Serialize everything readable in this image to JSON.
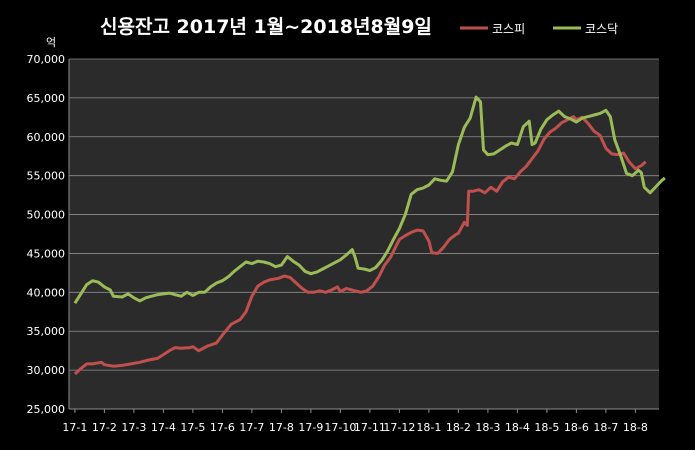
{
  "chart_data": {
    "type": "line",
    "title": "신용잔고 2017년 1월~2018년8월9일",
    "ylabel": "억",
    "xlabel": "",
    "ylim": [
      25000,
      70000
    ],
    "yticks": [
      "25,000",
      "30,000",
      "35,000",
      "40,000",
      "45,000",
      "50,000",
      "55,000",
      "60,000",
      "65,000",
      "70,000"
    ],
    "categories": [
      "17-1",
      "17-2",
      "17-3",
      "17-4",
      "17-5",
      "17-6",
      "17-7",
      "17-8",
      "17-9",
      "17-10",
      "17-11",
      "17-12",
      "18-1",
      "18-2",
      "18-3",
      "18-4",
      "18-5",
      "18-6",
      "18-7",
      "18-8"
    ],
    "grid": true,
    "legend_position": "top-right",
    "series": [
      {
        "name": "코스피",
        "color": "#c0504d",
        "points": [
          [
            0,
            29500
          ],
          [
            0.2,
            30200
          ],
          [
            0.4,
            30800
          ],
          [
            0.6,
            30800
          ],
          [
            0.9,
            31000
          ],
          [
            1.0,
            30700
          ],
          [
            1.3,
            30500
          ],
          [
            1.6,
            30600
          ],
          [
            1.9,
            30800
          ],
          [
            2.2,
            31000
          ],
          [
            2.5,
            31300
          ],
          [
            2.8,
            31500
          ],
          [
            3.0,
            32000
          ],
          [
            3.2,
            32500
          ],
          [
            3.4,
            32900
          ],
          [
            3.6,
            32800
          ],
          [
            3.9,
            32900
          ],
          [
            4.0,
            33000
          ],
          [
            4.2,
            32500
          ],
          [
            4.5,
            33100
          ],
          [
            4.8,
            33500
          ],
          [
            5.0,
            34500
          ],
          [
            5.3,
            35900
          ],
          [
            5.6,
            36500
          ],
          [
            5.8,
            37500
          ],
          [
            6.0,
            39500
          ],
          [
            6.2,
            40800
          ],
          [
            6.4,
            41300
          ],
          [
            6.6,
            41600
          ],
          [
            6.9,
            41800
          ],
          [
            7.1,
            42100
          ],
          [
            7.3,
            41900
          ],
          [
            7.5,
            41200
          ],
          [
            7.7,
            40500
          ],
          [
            7.9,
            40000
          ],
          [
            8.1,
            40000
          ],
          [
            8.3,
            40200
          ],
          [
            8.5,
            40000
          ],
          [
            8.7,
            40300
          ],
          [
            8.9,
            40700
          ],
          [
            9.0,
            40100
          ],
          [
            9.2,
            40500
          ],
          [
            9.5,
            40200
          ],
          [
            9.7,
            40000
          ],
          [
            9.9,
            40200
          ],
          [
            10.1,
            40800
          ],
          [
            10.3,
            42000
          ],
          [
            10.5,
            43500
          ],
          [
            10.7,
            44500
          ],
          [
            11.0,
            46800
          ],
          [
            11.2,
            47300
          ],
          [
            11.4,
            47700
          ],
          [
            11.6,
            48000
          ],
          [
            11.8,
            47900
          ],
          [
            12.0,
            46600
          ],
          [
            12.1,
            45100
          ],
          [
            12.3,
            45000
          ],
          [
            12.5,
            45800
          ],
          [
            12.7,
            46800
          ],
          [
            12.9,
            47400
          ],
          [
            13.0,
            47600
          ],
          [
            13.2,
            49000
          ],
          [
            13.3,
            48600
          ],
          [
            13.35,
            53000
          ],
          [
            13.5,
            53000
          ],
          [
            13.7,
            53200
          ],
          [
            13.9,
            52800
          ],
          [
            14.1,
            53500
          ],
          [
            14.3,
            53000
          ],
          [
            14.5,
            54200
          ],
          [
            14.7,
            54800
          ],
          [
            14.9,
            54600
          ],
          [
            15.1,
            55500
          ],
          [
            15.3,
            56200
          ],
          [
            15.5,
            57200
          ],
          [
            15.7,
            58200
          ],
          [
            15.9,
            59700
          ],
          [
            16.1,
            60600
          ],
          [
            16.3,
            61100
          ],
          [
            16.5,
            61800
          ],
          [
            16.7,
            62200
          ],
          [
            16.9,
            62600
          ],
          [
            17.0,
            62200
          ],
          [
            17.2,
            62500
          ],
          [
            17.4,
            61700
          ],
          [
            17.6,
            60700
          ],
          [
            17.8,
            60200
          ],
          [
            18.0,
            58500
          ],
          [
            18.2,
            57800
          ],
          [
            18.4,
            57700
          ],
          [
            18.6,
            57900
          ],
          [
            18.8,
            56700
          ],
          [
            19.0,
            55900
          ],
          [
            19.2,
            56300
          ],
          [
            19.35,
            56800
          ]
        ]
      },
      {
        "name": "코스닥",
        "color": "#9bbb59",
        "points": [
          [
            0,
            38600
          ],
          [
            0.2,
            39800
          ],
          [
            0.4,
            41000
          ],
          [
            0.6,
            41500
          ],
          [
            0.8,
            41300
          ],
          [
            1.0,
            40700
          ],
          [
            1.2,
            40300
          ],
          [
            1.3,
            39500
          ],
          [
            1.6,
            39400
          ],
          [
            1.8,
            39800
          ],
          [
            2.0,
            39300
          ],
          [
            2.2,
            38900
          ],
          [
            2.4,
            39300
          ],
          [
            2.6,
            39500
          ],
          [
            2.8,
            39700
          ],
          [
            3.0,
            39800
          ],
          [
            3.2,
            39900
          ],
          [
            3.4,
            39700
          ],
          [
            3.6,
            39500
          ],
          [
            3.8,
            40000
          ],
          [
            4.0,
            39600
          ],
          [
            4.2,
            40000
          ],
          [
            4.4,
            40000
          ],
          [
            4.6,
            40700
          ],
          [
            4.8,
            41200
          ],
          [
            5.0,
            41500
          ],
          [
            5.2,
            42000
          ],
          [
            5.4,
            42700
          ],
          [
            5.6,
            43300
          ],
          [
            5.8,
            43900
          ],
          [
            6.0,
            43700
          ],
          [
            6.2,
            44000
          ],
          [
            6.4,
            43900
          ],
          [
            6.6,
            43700
          ],
          [
            6.8,
            43300
          ],
          [
            7.0,
            43500
          ],
          [
            7.2,
            44600
          ],
          [
            7.4,
            44000
          ],
          [
            7.6,
            43500
          ],
          [
            7.8,
            42700
          ],
          [
            8.0,
            42400
          ],
          [
            8.2,
            42600
          ],
          [
            8.4,
            43000
          ],
          [
            8.6,
            43400
          ],
          [
            8.8,
            43800
          ],
          [
            9.0,
            44200
          ],
          [
            9.2,
            44800
          ],
          [
            9.4,
            45500
          ],
          [
            9.5,
            44500
          ],
          [
            9.6,
            43100
          ],
          [
            9.8,
            43000
          ],
          [
            10.0,
            42800
          ],
          [
            10.2,
            43200
          ],
          [
            10.4,
            44100
          ],
          [
            10.6,
            45300
          ],
          [
            10.8,
            46800
          ],
          [
            11.0,
            48200
          ],
          [
            11.2,
            50000
          ],
          [
            11.4,
            52600
          ],
          [
            11.6,
            53200
          ],
          [
            11.8,
            53400
          ],
          [
            12.0,
            53800
          ],
          [
            12.2,
            54600
          ],
          [
            12.4,
            54400
          ],
          [
            12.6,
            54300
          ],
          [
            12.8,
            55500
          ],
          [
            13.0,
            59000
          ],
          [
            13.2,
            61200
          ],
          [
            13.4,
            62400
          ],
          [
            13.6,
            65100
          ],
          [
            13.75,
            64500
          ],
          [
            13.85,
            58300
          ],
          [
            14.0,
            57700
          ],
          [
            14.2,
            57800
          ],
          [
            14.4,
            58300
          ],
          [
            14.6,
            58800
          ],
          [
            14.8,
            59200
          ],
          [
            15.0,
            59000
          ],
          [
            15.2,
            61300
          ],
          [
            15.4,
            62000
          ],
          [
            15.5,
            59000
          ],
          [
            15.6,
            59200
          ],
          [
            15.8,
            61000
          ],
          [
            16.0,
            62200
          ],
          [
            16.2,
            62800
          ],
          [
            16.4,
            63300
          ],
          [
            16.6,
            62600
          ],
          [
            16.8,
            62300
          ],
          [
            17.0,
            61900
          ],
          [
            17.2,
            62400
          ],
          [
            17.4,
            62600
          ],
          [
            17.6,
            62800
          ],
          [
            17.8,
            63000
          ],
          [
            18.0,
            63400
          ],
          [
            18.15,
            62600
          ],
          [
            18.3,
            59600
          ],
          [
            18.5,
            57600
          ],
          [
            18.7,
            55300
          ],
          [
            18.9,
            55000
          ],
          [
            19.1,
            55700
          ],
          [
            19.2,
            55400
          ],
          [
            19.3,
            53500
          ],
          [
            19.5,
            52800
          ],
          [
            19.7,
            53600
          ],
          [
            19.9,
            54400
          ],
          [
            20.0,
            54700
          ]
        ]
      }
    ]
  }
}
